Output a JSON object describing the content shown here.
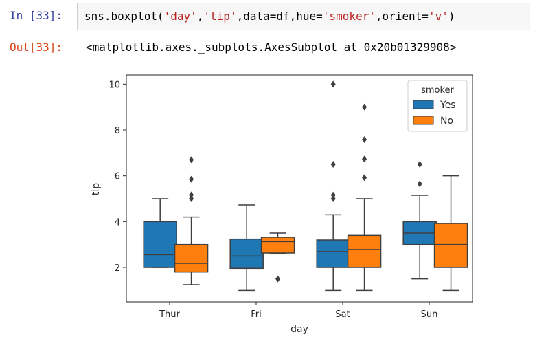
{
  "cell": {
    "in_prompt": "In [33]:",
    "out_prompt": "Out[33]:",
    "code": {
      "t1": "sns.boxplot(",
      "s1": "'day'",
      "t2": ",",
      "s2": "'tip'",
      "t3": ",data=df,hue=",
      "s3": "'smoker'",
      "t4": ",orient=",
      "s4": "'v'",
      "t5": ")"
    },
    "output": "<matplotlib.axes._subplots.AxesSubplot at 0x20b01329908>"
  },
  "colors": {
    "yes": "#1f77b4",
    "no": "#ff7f0e",
    "box_edge": "#3f3f3f",
    "string": "#ba2121",
    "in_prompt": "#303f9f",
    "out_prompt": "#d84315"
  },
  "chart_data": {
    "type": "box",
    "xlabel": "day",
    "ylabel": "tip",
    "categories": [
      "Thur",
      "Fri",
      "Sat",
      "Sun"
    ],
    "ylim": [
      0.5,
      10.4
    ],
    "yticks": [
      2,
      4,
      6,
      8,
      10
    ],
    "grid": false,
    "legend": {
      "title": "smoker",
      "placement": "top-right"
    },
    "series": [
      {
        "name": "Yes",
        "color": "#1f77b4",
        "boxes": [
          {
            "category": "Thur",
            "whislo": 2.0,
            "q1": 2.0,
            "median": 2.56,
            "q3": 4.0,
            "whishi": 5.0,
            "fliers": []
          },
          {
            "category": "Fri",
            "whislo": 1.0,
            "q1": 1.96,
            "median": 2.5,
            "q3": 3.24,
            "whishi": 4.73,
            "fliers": []
          },
          {
            "category": "Sat",
            "whislo": 1.0,
            "q1": 2.0,
            "median": 2.69,
            "q3": 3.2,
            "whishi": 4.3,
            "fliers": [
              5.0,
              5.16,
              6.5,
              10.0
            ]
          },
          {
            "category": "Sun",
            "whislo": 1.5,
            "q1": 3.0,
            "median": 3.5,
            "q3": 4.0,
            "whishi": 5.15,
            "fliers": [
              5.65,
              6.5
            ]
          }
        ]
      },
      {
        "name": "No",
        "color": "#ff7f0e",
        "boxes": [
          {
            "category": "Thur",
            "whislo": 1.25,
            "q1": 1.8,
            "median": 2.18,
            "q3": 3.0,
            "whishi": 4.2,
            "fliers": [
              5.0,
              5.17,
              5.85,
              6.7
            ]
          },
          {
            "category": "Fri",
            "whislo": 2.6,
            "q1": 2.63,
            "median": 3.13,
            "q3": 3.32,
            "whishi": 3.5,
            "fliers": [
              1.5
            ]
          },
          {
            "category": "Sat",
            "whislo": 1.0,
            "q1": 2.0,
            "median": 2.78,
            "q3": 3.4,
            "whishi": 5.0,
            "fliers": [
              5.92,
              6.73,
              7.58,
              9.0
            ]
          },
          {
            "category": "Sun",
            "whislo": 1.0,
            "q1": 2.0,
            "median": 3.0,
            "q3": 3.92,
            "whishi": 6.0,
            "fliers": []
          }
        ]
      }
    ]
  }
}
